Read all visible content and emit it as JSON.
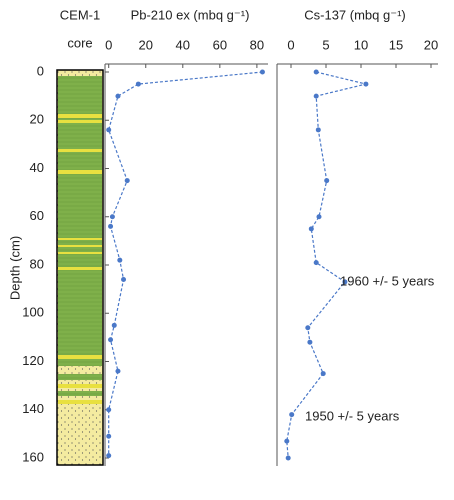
{
  "core": {
    "title": "CEM-1",
    "subtitle": "core"
  },
  "chart_data": [
    {
      "type": "profile",
      "title": "Pb-210 ex (mbq g⁻¹)",
      "ylabel": "Depth (cm)",
      "color": "#4a78c8",
      "depth": [
        0,
        5,
        10,
        24,
        45,
        60,
        64,
        78,
        86,
        105,
        111,
        124,
        140,
        151,
        159
      ],
      "values": [
        83,
        16,
        5,
        0,
        10,
        2,
        1,
        6,
        8,
        3,
        1,
        5,
        0,
        0,
        0
      ],
      "xlim": [
        -2,
        86
      ],
      "xticks": [
        0,
        20,
        40,
        60,
        80
      ],
      "ylim": [
        0,
        160
      ],
      "yticks": [
        0,
        20,
        40,
        60,
        80,
        100,
        120,
        140,
        160
      ]
    },
    {
      "type": "profile",
      "title": "Cs-137 (mbq g⁻¹)",
      "color": "#4a78c8",
      "depth": [
        0,
        5,
        10,
        24,
        45,
        60,
        65,
        79,
        87,
        106,
        112,
        125,
        142,
        153,
        160
      ],
      "values": [
        3.6,
        10.7,
        3.6,
        3.9,
        5.1,
        4,
        2.9,
        3.6,
        7.7,
        2.4,
        2.7,
        4.6,
        0.1,
        -0.6,
        -0.4
      ],
      "xlim": [
        -2,
        21
      ],
      "xticks": [
        0,
        5,
        10,
        15,
        20
      ],
      "ylim": [
        0,
        160
      ],
      "annotations": [
        {
          "text": "1960 +/- 5 years",
          "color": "#e0402a"
        },
        {
          "text": "1950 +/- 5 years",
          "color": "#222222"
        }
      ]
    }
  ]
}
